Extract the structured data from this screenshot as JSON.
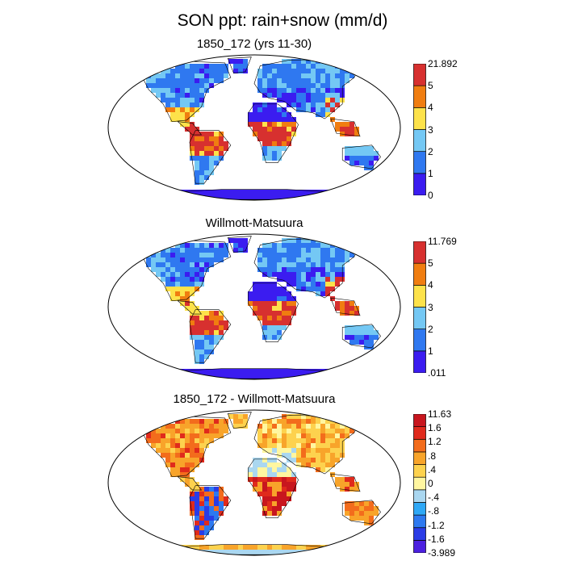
{
  "figure": {
    "title": "SON ppt: rain+snow (mm/d)"
  },
  "panels": [
    {
      "title": "1850_172 (yrs 11-30)",
      "colorbar": {
        "colors": [
          "#3b1cf0",
          "#2f78f0",
          "#74c8f4",
          "#fde24a",
          "#f07d10",
          "#d7302f"
        ],
        "labels": [
          "21.892",
          "5",
          "4",
          "3",
          "2",
          "1",
          "0"
        ]
      }
    },
    {
      "title": "Willmott-Matsuura",
      "colorbar": {
        "colors": [
          "#3b1cf0",
          "#2f78f0",
          "#74c8f4",
          "#fde24a",
          "#f07d10",
          "#d7302f"
        ],
        "labels": [
          "11.769",
          "5",
          "4",
          "3",
          "2",
          "1",
          ".011"
        ]
      }
    },
    {
      "title": "1850_172 - Willmott-Matsuura",
      "colorbar": {
        "colors": [
          "#4c20e0",
          "#2a3ce6",
          "#2d79f0",
          "#2ea8f6",
          "#aad7f0",
          "#fff6a0",
          "#fdd24e",
          "#f8a42a",
          "#f36c1c",
          "#e02a1c",
          "#c8161e"
        ],
        "labels": [
          "11.63",
          "1.6",
          "1.2",
          ".8",
          ".4",
          "0",
          "-.4",
          "-.8",
          "-1.2",
          "-1.6",
          "-3.989"
        ]
      }
    }
  ]
}
